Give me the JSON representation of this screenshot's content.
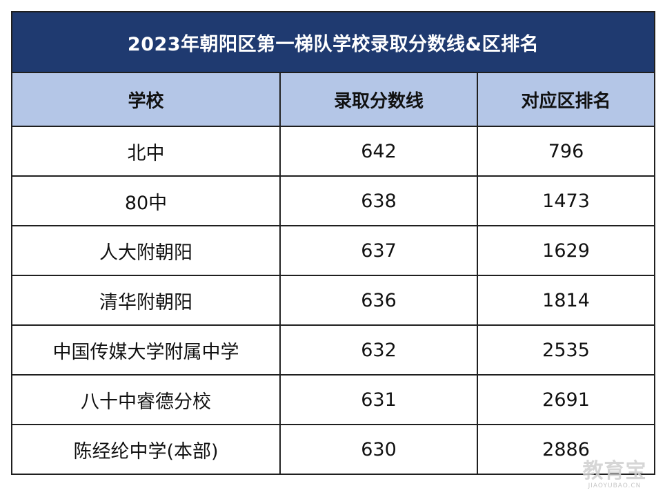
{
  "table": {
    "title": "2023年朝阳区第一梯队学校录取分数线&区排名",
    "headers": [
      "学校",
      "录取分数线",
      "对应区排名"
    ],
    "rows": [
      [
        "北中",
        "642",
        "796"
      ],
      [
        "80中",
        "638",
        "1473"
      ],
      [
        "人大附朝阳",
        "637",
        "1629"
      ],
      [
        "清华附朝阳",
        "636",
        "1814"
      ],
      [
        "中国传媒大学附属中学",
        "632",
        "2535"
      ],
      [
        "八十中睿德分校",
        "631",
        "2691"
      ],
      [
        "陈经纶中学(本部)",
        "630",
        "2886"
      ]
    ]
  },
  "watermark": {
    "main": "教育宝",
    "sub": "JIAOYUBAO.CN"
  },
  "colors": {
    "title_bg": "#1f3a70",
    "header_bg": "#b4c6e7",
    "border": "#1f1f1f"
  }
}
